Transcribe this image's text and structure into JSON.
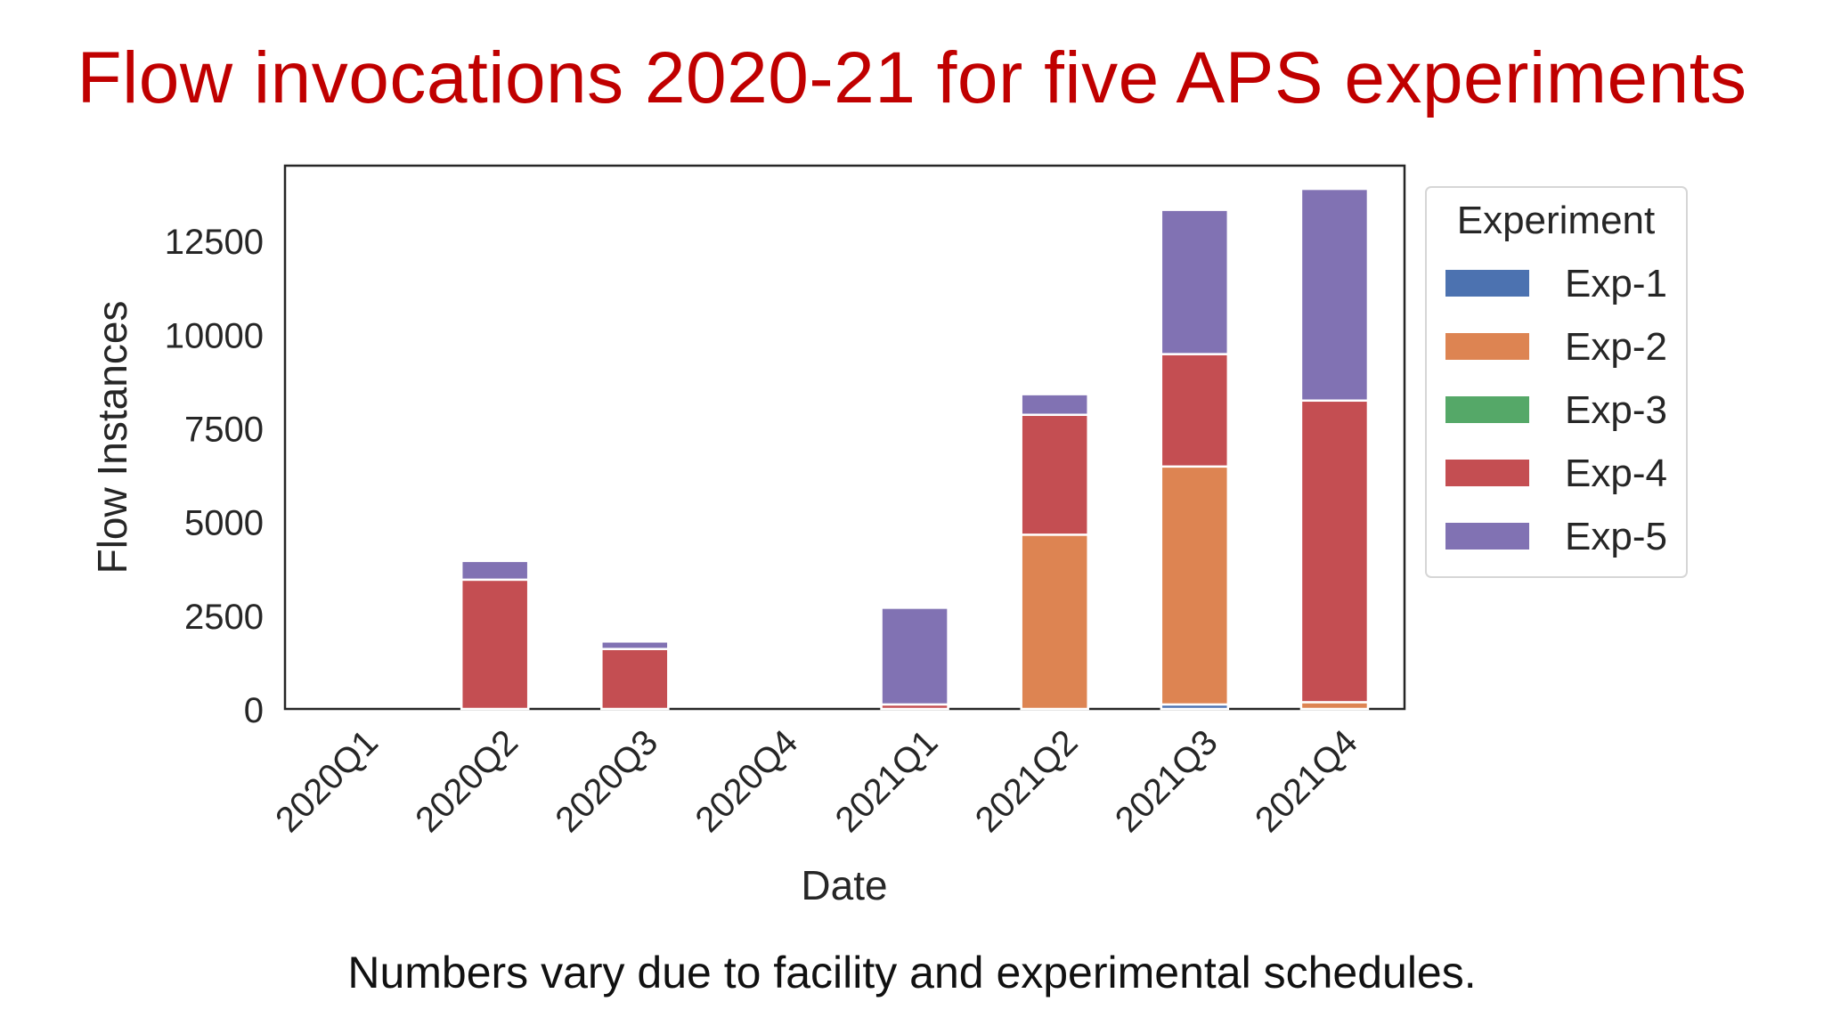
{
  "slide": {
    "title": "Flow invocations 2020-21 for five APS experiments",
    "caption": "Numbers vary due to facility and experimental schedules."
  },
  "chart_data": {
    "type": "bar",
    "stacked": true,
    "xlabel": "Date",
    "ylabel": "Flow Instances",
    "ylim": [
      0,
      14500
    ],
    "yticks": [
      0,
      2500,
      5000,
      7500,
      10000,
      12500
    ],
    "grid": false,
    "legend": {
      "title": "Experiment",
      "placement": "right, outside plot area"
    },
    "categories": [
      "2020Q1",
      "2020Q2",
      "2020Q3",
      "2020Q4",
      "2021Q1",
      "2021Q2",
      "2021Q3",
      "2021Q4"
    ],
    "series": [
      {
        "name": "Exp-1",
        "color": "#4c72b0",
        "values": [
          0,
          0,
          0,
          0,
          0,
          0,
          120,
          0
        ]
      },
      {
        "name": "Exp-2",
        "color": "#dd8452",
        "values": [
          0,
          0,
          0,
          0,
          0,
          4650,
          6350,
          180
        ]
      },
      {
        "name": "Exp-3",
        "color": "#55a868",
        "values": [
          0,
          0,
          0,
          0,
          0,
          0,
          0,
          0
        ]
      },
      {
        "name": "Exp-4",
        "color": "#c44e52",
        "values": [
          0,
          3450,
          1600,
          0,
          120,
          3200,
          3000,
          8050
        ]
      },
      {
        "name": "Exp-5",
        "color": "#8172b3",
        "values": [
          0,
          500,
          200,
          0,
          2580,
          550,
          3850,
          5650
        ]
      }
    ]
  }
}
